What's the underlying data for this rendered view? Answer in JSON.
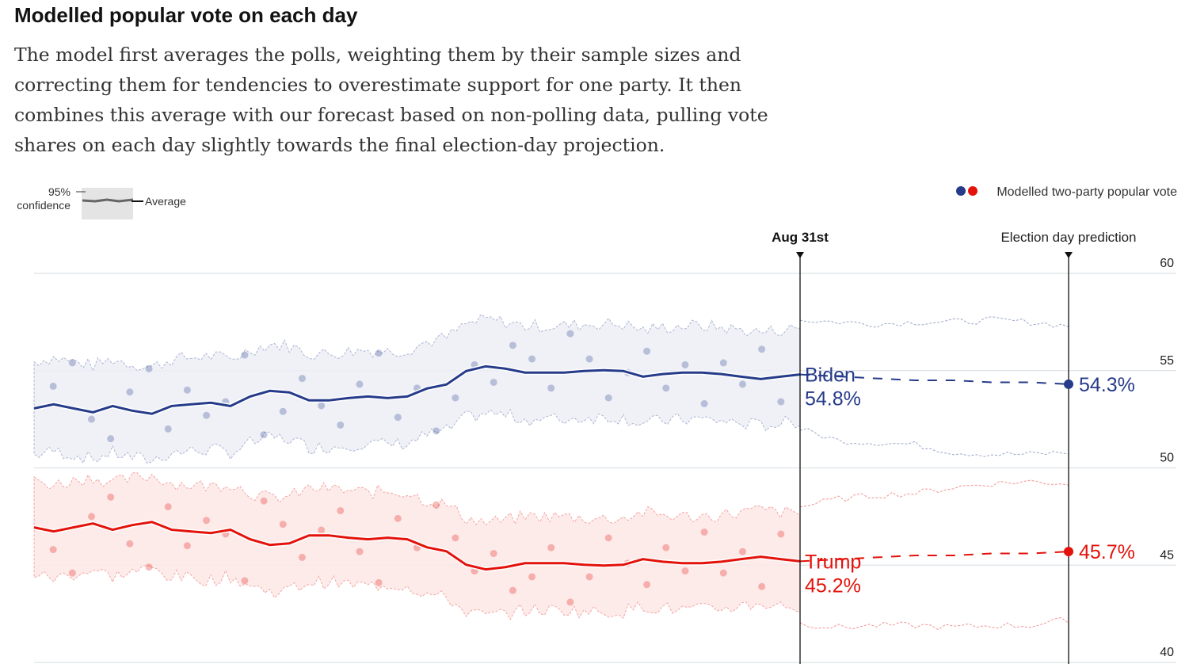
{
  "title": "Modelled popular vote on each day",
  "description": "The model first averages the polls, weighting them by their sample sizes and correcting them for tendencies to overestimate support for one party. It then combines this average with our forecast based on non-polling data, pulling vote shares on each day slightly towards the final election-day projection.",
  "legend": {
    "confidence_label_1": "95%",
    "confidence_label_2": "confidence",
    "average_label": "Average",
    "series_label": "Modelled two-party popular vote"
  },
  "markers": {
    "today": "Aug 31st",
    "election": "Election day prediction"
  },
  "chart_data": {
    "type": "line",
    "ylim": [
      40,
      60
    ],
    "yticks": [
      "60",
      "55",
      "50",
      "45",
      "40"
    ],
    "grid": true,
    "colors": {
      "biden": "#263b8a",
      "trump": "#e3120b",
      "biden_band": "#eceef6",
      "trump_band": "#fde8e6"
    },
    "ci_halfwidth": 2.4,
    "series": [
      {
        "name": "Biden",
        "label_value": "54.8%",
        "final_label": "54.3%",
        "values": [
          53.06,
          53.27,
          53.06,
          52.86,
          53.18,
          52.94,
          52.78,
          53.18,
          53.27,
          53.35,
          53.18,
          53.67,
          53.96,
          53.88,
          53.47,
          53.47,
          53.59,
          53.67,
          53.59,
          53.67,
          54.08,
          54.29,
          54.98,
          55.22,
          55.1,
          54.9,
          54.9,
          54.9,
          54.98,
          55.02,
          54.98,
          54.69,
          54.82,
          54.9,
          54.9,
          54.82,
          54.69,
          54.57,
          54.69,
          54.8
        ],
        "projection": [
          54.8,
          54.7,
          54.6,
          54.5,
          54.5,
          54.4,
          54.4,
          54.3
        ],
        "projection_upper": [
          57.6,
          57.5,
          57.4,
          57.5,
          57.5,
          57.6,
          57.5,
          57.3
        ],
        "projection_lower": [
          52.0,
          51.4,
          51.3,
          51.2,
          50.8,
          50.7,
          50.7,
          50.8
        ],
        "polls": [
          [
            1,
            54.2
          ],
          [
            2,
            55.4
          ],
          [
            3,
            52.5
          ],
          [
            4,
            51.5
          ],
          [
            5,
            53.9
          ],
          [
            6,
            55.1
          ],
          [
            7,
            52.0
          ],
          [
            8,
            54.0
          ],
          [
            9,
            52.7
          ],
          [
            10,
            53.4
          ],
          [
            11,
            55.8
          ],
          [
            12,
            51.7
          ],
          [
            13,
            52.9
          ],
          [
            14,
            54.6
          ],
          [
            15,
            53.2
          ],
          [
            16,
            52.2
          ],
          [
            17,
            54.3
          ],
          [
            18,
            55.9
          ],
          [
            19,
            52.6
          ],
          [
            20,
            54.1
          ],
          [
            21,
            51.9
          ],
          [
            22,
            53.6
          ],
          [
            23,
            55.3
          ],
          [
            24,
            54.4
          ],
          [
            25,
            56.3
          ],
          [
            26,
            55.6
          ],
          [
            27,
            54.1
          ],
          [
            28,
            56.9
          ],
          [
            29,
            55.6
          ],
          [
            30,
            53.6
          ],
          [
            31,
            54.9
          ],
          [
            32,
            56.0
          ],
          [
            33,
            54.1
          ],
          [
            34,
            55.3
          ],
          [
            35,
            53.3
          ],
          [
            36,
            55.4
          ],
          [
            37,
            54.3
          ],
          [
            38,
            56.1
          ],
          [
            39,
            53.4
          ]
        ]
      },
      {
        "name": "Trump",
        "label_value": "45.2%",
        "final_label": "45.7%",
        "values": [
          46.94,
          46.73,
          46.94,
          47.14,
          46.82,
          47.06,
          47.22,
          46.82,
          46.73,
          46.65,
          46.82,
          46.33,
          46.04,
          46.12,
          46.53,
          46.53,
          46.41,
          46.33,
          46.41,
          46.33,
          45.92,
          45.71,
          45.02,
          44.78,
          44.9,
          45.1,
          45.1,
          45.1,
          45.02,
          44.98,
          45.02,
          45.31,
          45.18,
          45.1,
          45.1,
          45.18,
          45.31,
          45.43,
          45.31,
          45.2
        ],
        "projection": [
          45.2,
          45.3,
          45.4,
          45.5,
          45.5,
          45.6,
          45.6,
          45.7
        ],
        "projection_upper": [
          48.0,
          48.4,
          48.6,
          48.7,
          49.0,
          49.2,
          49.3,
          49.2
        ],
        "projection_lower": [
          42.0,
          41.8,
          41.9,
          41.9,
          41.8,
          41.9,
          41.9,
          42.2
        ],
        "polls": [
          [
            1,
            45.8
          ],
          [
            2,
            44.6
          ],
          [
            3,
            47.5
          ],
          [
            4,
            48.5
          ],
          [
            5,
            46.1
          ],
          [
            6,
            44.9
          ],
          [
            7,
            48.0
          ],
          [
            8,
            46.0
          ],
          [
            9,
            47.3
          ],
          [
            10,
            46.6
          ],
          [
            11,
            44.2
          ],
          [
            12,
            48.3
          ],
          [
            13,
            47.1
          ],
          [
            14,
            45.4
          ],
          [
            15,
            46.8
          ],
          [
            16,
            47.8
          ],
          [
            17,
            45.7
          ],
          [
            18,
            44.1
          ],
          [
            19,
            47.4
          ],
          [
            20,
            45.9
          ],
          [
            21,
            48.1
          ],
          [
            22,
            46.4
          ],
          [
            23,
            44.7
          ],
          [
            24,
            45.6
          ],
          [
            25,
            43.7
          ],
          [
            26,
            44.4
          ],
          [
            27,
            45.9
          ],
          [
            28,
            43.1
          ],
          [
            29,
            44.4
          ],
          [
            30,
            46.4
          ],
          [
            31,
            45.1
          ],
          [
            32,
            44.0
          ],
          [
            33,
            45.9
          ],
          [
            34,
            44.7
          ],
          [
            35,
            46.7
          ],
          [
            36,
            44.6
          ],
          [
            37,
            45.7
          ],
          [
            38,
            43.9
          ],
          [
            39,
            46.6
          ]
        ]
      }
    ]
  }
}
